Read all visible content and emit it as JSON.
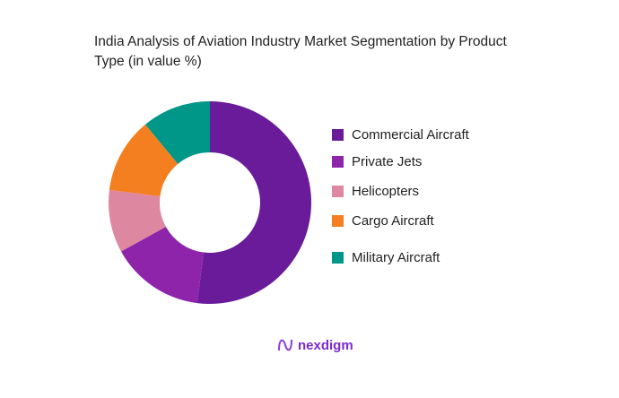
{
  "chart_data": {
    "type": "pie",
    "donut": true,
    "title": "India Analysis of Aviation Industry Market Segmentation by Product Type (in value %)",
    "legend_position": "right",
    "categories": [
      "Commercial Aircraft",
      "Private Jets",
      "Helicopters",
      "Cargo Aircraft",
      "Military Aircraft"
    ],
    "values": [
      52,
      15,
      10,
      12,
      11
    ],
    "colors": [
      "#6a1b9a",
      "#8e24aa",
      "#de87a1",
      "#f47f20",
      "#009688"
    ]
  },
  "branding": {
    "logo_text": "nexdigm"
  }
}
